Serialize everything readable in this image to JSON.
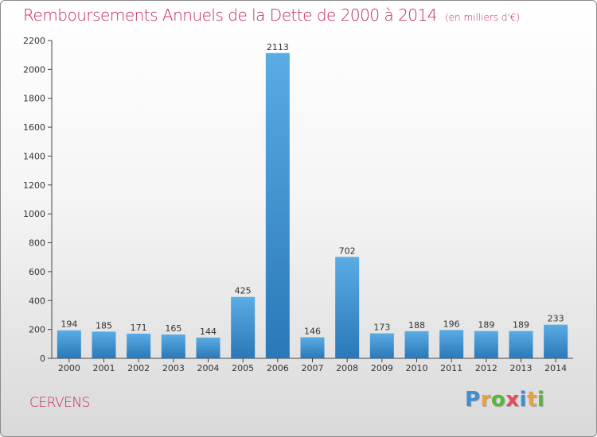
{
  "chart_data": {
    "type": "bar",
    "title": "Remboursements Annuels de la Dette de 2000 à 2014",
    "subtitle": "(en milliers d'€)",
    "categories": [
      "2000",
      "2001",
      "2002",
      "2003",
      "2004",
      "2005",
      "2006",
      "2007",
      "2008",
      "2009",
      "2010",
      "2011",
      "2012",
      "2013",
      "2014"
    ],
    "values": [
      194,
      185,
      171,
      165,
      144,
      425,
      2113,
      146,
      702,
      173,
      188,
      196,
      189,
      189,
      233
    ],
    "ylim": [
      0,
      2200
    ],
    "yticks": [
      0,
      200,
      400,
      600,
      800,
      1000,
      1200,
      1400,
      1600,
      1800,
      2000,
      2200
    ],
    "grid": false,
    "colors": {
      "bar_top": "#5aace4",
      "bar_bottom": "#2a78b8",
      "title": "#c6285e"
    }
  },
  "footer": {
    "commune": "CERVENS",
    "logo_letters": [
      "P",
      "r",
      "o",
      "x",
      "i",
      "t",
      "i"
    ],
    "logo_colors": [
      "#3e8fd1",
      "#e8a23a",
      "#5ab53c",
      "#e44b5c",
      "#3e8fd1",
      "#e8a23a",
      "#5ab53c"
    ]
  }
}
